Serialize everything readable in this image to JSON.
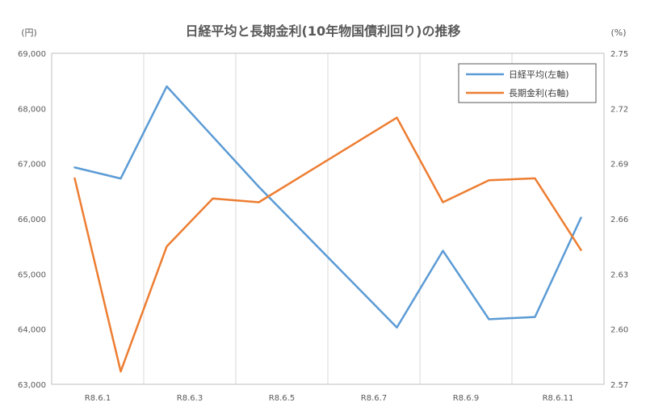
{
  "chart_data": {
    "type": "line",
    "title": "日経平均と長期金利(10年物国債利回り)の推移",
    "y_left_unit": "(円)",
    "y_right_unit": "(%)",
    "x": [
      "R8.6.1",
      "R8.6.2",
      "R8.6.3",
      "R8.6.4",
      "R8.6.5",
      "R8.6.6",
      "R8.6.7",
      "R8.6.8",
      "R8.6.9",
      "R8.6.10",
      "R8.6.11",
      "R8.6.12"
    ],
    "x_tick_labels": [
      "R8.6.1",
      "R8.6.3",
      "R8.6.5",
      "R8.6.7",
      "R8.6.9",
      "R8.6.11"
    ],
    "y_left_lim": [
      63000,
      69000
    ],
    "y_left_ticks": [
      63000,
      64000,
      65000,
      66000,
      67000,
      68000,
      69000
    ],
    "y_left_tick_labels": [
      "63,000",
      "64,000",
      "65,000",
      "66,000",
      "67,000",
      "68,000",
      "69,000"
    ],
    "y_right_lim": [
      2.57,
      2.75
    ],
    "y_right_ticks": [
      2.57,
      2.6,
      2.63,
      2.66,
      2.69,
      2.72,
      2.75
    ],
    "y_right_tick_labels": [
      "2.57",
      "2.60",
      "2.63",
      "2.66",
      "2.69",
      "2.72",
      "2.75"
    ],
    "grid": "vertical",
    "legend_position": "top-right",
    "series": [
      {
        "name": "日経平均(左軸)",
        "axis": "left",
        "color": "#5b9bd5",
        "x": [
          "R8.6.1",
          "R8.6.2",
          "R8.6.3",
          "R8.6.5",
          "R8.6.8",
          "R8.6.9",
          "R8.6.10",
          "R8.6.11",
          "R8.6.12"
        ],
        "values": [
          66930,
          66730,
          68400,
          66580,
          64030,
          65420,
          64180,
          64220,
          66020
        ]
      },
      {
        "name": "長期金利(右軸)",
        "axis": "right",
        "color": "#ed7d31",
        "x": [
          "R8.6.1",
          "R8.6.2",
          "R8.6.3",
          "R8.6.4",
          "R8.6.5",
          "R8.6.8",
          "R8.6.9",
          "R8.6.10",
          "R8.6.11",
          "R8.6.12"
        ],
        "values": [
          2.682,
          2.577,
          2.645,
          2.671,
          2.669,
          2.715,
          2.669,
          2.681,
          2.682,
          2.643
        ]
      }
    ]
  }
}
